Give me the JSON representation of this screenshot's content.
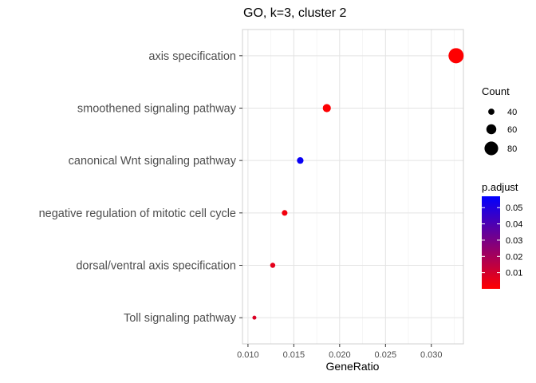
{
  "chart_data": {
    "type": "scatter",
    "title": "GO, k=3, cluster 2",
    "xlabel": "GeneRatio",
    "ylabel": "",
    "xlim": [
      0.0094,
      0.0335
    ],
    "x_ticks": [
      "0.010",
      "0.015",
      "0.020",
      "0.025",
      "0.030"
    ],
    "x_tick_values": [
      0.01,
      0.015,
      0.02,
      0.025,
      0.03
    ],
    "grid": true,
    "categories": [
      "axis specification",
      "smoothened signaling pathway",
      "canonical Wnt signaling pathway",
      "negative regulation of mitotic cell cycle",
      "dorsal/ventral axis specification",
      "Toll signaling pathway"
    ],
    "points": [
      {
        "category": "axis specification",
        "gene_ratio": 0.0327,
        "count": 88,
        "p_adjust": 0.0003
      },
      {
        "category": "smoothened signaling pathway",
        "gene_ratio": 0.0186,
        "count": 50,
        "p_adjust": 0.0005
      },
      {
        "category": "canonical Wnt signaling pathway",
        "gene_ratio": 0.0157,
        "count": 42,
        "p_adjust": 0.055
      },
      {
        "category": "negative regulation of mitotic cell cycle",
        "gene_ratio": 0.014,
        "count": 37,
        "p_adjust": 0.003
      },
      {
        "category": "dorsal/ventral axis specification",
        "gene_ratio": 0.0127,
        "count": 34,
        "p_adjust": 0.006
      },
      {
        "category": "Toll signaling pathway",
        "gene_ratio": 0.0107,
        "count": 28,
        "p_adjust": 0.008
      }
    ],
    "size_legend": {
      "title": "Count",
      "values": [
        40,
        60,
        80
      ],
      "labels": [
        "40",
        "60",
        "80"
      ],
      "domain": [
        28,
        88
      ]
    },
    "color_legend": {
      "title": "p.adjust",
      "ticks": [
        0.01,
        0.02,
        0.03,
        0.04,
        0.05
      ],
      "labels": [
        "0.01",
        "0.02",
        "0.03",
        "0.04",
        "0.05"
      ],
      "domain": [
        0.0,
        0.057
      ],
      "low_color": "#ff0000",
      "high_color": "#0000ff"
    },
    "legend_position": "right"
  }
}
